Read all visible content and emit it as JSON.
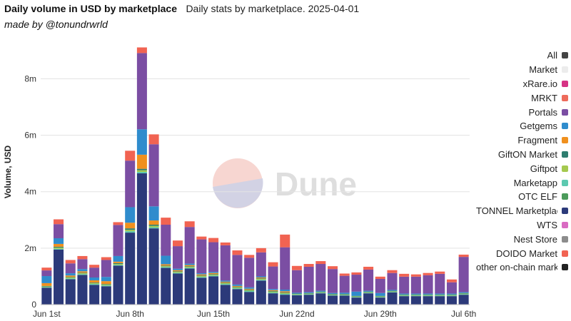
{
  "header": {
    "title": "Daily volume in USD by marketplace",
    "subtitle": "Daily stats by marketplace. 2025-04-01",
    "credit": "made by @tonundrwrld"
  },
  "watermark": "Dune",
  "chart_data": {
    "type": "bar",
    "stacked": true,
    "ylabel": "Volume, USD",
    "xlabel": "",
    "ylim": [
      0,
      9400000
    ],
    "yticks": [
      0,
      2000000,
      4000000,
      6000000,
      8000000
    ],
    "ytick_labels": [
      "0",
      "2m",
      "4m",
      "6m",
      "8m"
    ],
    "x_tick_labels": [
      {
        "index": 0,
        "label": "Jun 1st"
      },
      {
        "index": 7,
        "label": "Jun 8th"
      },
      {
        "index": 14,
        "label": "Jun 15th"
      },
      {
        "index": 21,
        "label": "Jun 22nd"
      },
      {
        "index": 28,
        "label": "Jun 29th"
      },
      {
        "index": 35,
        "label": "Jul 6th"
      }
    ],
    "grid": true,
    "legend_position": "right",
    "categories": [
      "Jun 1",
      "Jun 2",
      "Jun 3",
      "Jun 4",
      "Jun 5",
      "Jun 6",
      "Jun 7",
      "Jun 8",
      "Jun 9",
      "Jun 10",
      "Jun 11",
      "Jun 12",
      "Jun 13",
      "Jun 14",
      "Jun 15",
      "Jun 16",
      "Jun 17",
      "Jun 18",
      "Jun 19",
      "Jun 20",
      "Jun 21",
      "Jun 22",
      "Jun 23",
      "Jun 24",
      "Jun 25",
      "Jun 26",
      "Jun 27",
      "Jun 28",
      "Jun 29",
      "Jun 30",
      "Jul 1",
      "Jul 2",
      "Jul 3",
      "Jul 4",
      "Jul 5",
      "Jul 6"
    ],
    "series": [
      {
        "name": "All",
        "color": "#444444",
        "values": [
          0,
          0,
          0,
          0,
          0,
          0,
          0,
          0,
          0,
          0,
          0,
          0,
          0,
          0,
          0,
          0,
          0,
          0,
          0,
          0,
          0,
          0,
          0,
          0,
          0,
          0,
          0,
          0,
          0,
          0,
          0,
          0,
          0,
          0,
          0,
          0
        ]
      },
      {
        "name": "Market",
        "color": "#ececec",
        "values": [
          0,
          0,
          0,
          0,
          0,
          0,
          0,
          0,
          0,
          0,
          0,
          0,
          0,
          0,
          0,
          0,
          0,
          0,
          0,
          0,
          0,
          0,
          0,
          0,
          0,
          0,
          0,
          0,
          0,
          0,
          0,
          0,
          0,
          0,
          0,
          0
        ]
      },
      {
        "name": "xRare.io",
        "color": "#d63384",
        "values": [
          0,
          0,
          0,
          0,
          0,
          0,
          0,
          0,
          0,
          0,
          0,
          0,
          0,
          0,
          0,
          0,
          0,
          0,
          0,
          0,
          0,
          0,
          0,
          0,
          0,
          0,
          0,
          0,
          0,
          0,
          0,
          0,
          0,
          0,
          0,
          0
        ]
      },
      {
        "name": "DOIDO Market",
        "color": "#f16352",
        "values": [
          100000,
          170000,
          120000,
          110000,
          100000,
          100000,
          100000,
          350000,
          200000,
          350000,
          250000,
          200000,
          200000,
          100000,
          150000,
          100000,
          160000,
          100000,
          150000,
          150000,
          450000,
          150000,
          100000,
          100000,
          100000,
          80000,
          80000,
          100000,
          80000,
          100000,
          100000,
          80000,
          80000,
          80000,
          100000,
          80000
        ]
      },
      {
        "name": "Portals",
        "color": "#7b4ea3",
        "values": [
          200000,
          500000,
          350000,
          350000,
          350000,
          600000,
          1100000,
          1650000,
          2700000,
          2200000,
          1100000,
          800000,
          1300000,
          1200000,
          1050000,
          1250000,
          1050000,
          1050000,
          850000,
          800000,
          1500000,
          800000,
          900000,
          950000,
          850000,
          600000,
          600000,
          750000,
          500000,
          600000,
          600000,
          600000,
          650000,
          700000,
          400000,
          1250000
        ]
      },
      {
        "name": "Getgems",
        "color": "#2f8ccd",
        "values": [
          250000,
          200000,
          80000,
          80000,
          100000,
          150000,
          200000,
          550000,
          900000,
          500000,
          300000,
          50000,
          50000,
          40000,
          40000,
          40000,
          50000,
          50000,
          40000,
          40000,
          60000,
          30000,
          30000,
          30000,
          30000,
          40000,
          150000,
          30000,
          100000,
          30000,
          30000,
          30000,
          30000,
          30000,
          30000,
          30000
        ]
      },
      {
        "name": "Fragment",
        "color": "#f0901e",
        "values": [
          100000,
          100000,
          50000,
          50000,
          80000,
          100000,
          50000,
          200000,
          500000,
          150000,
          50000,
          40000,
          40000,
          40000,
          40000,
          30000,
          30000,
          30000,
          30000,
          30000,
          40000,
          0,
          0,
          0,
          0,
          0,
          0,
          0,
          0,
          0,
          0,
          0,
          0,
          0,
          0,
          0
        ]
      },
      {
        "name": "GiftON Market",
        "color": "#2e7d6f",
        "values": [
          20000,
          30000,
          20000,
          20000,
          20000,
          20000,
          30000,
          50000,
          50000,
          40000,
          20000,
          20000,
          20000,
          20000,
          20000,
          20000,
          20000,
          20000,
          20000,
          20000,
          20000,
          20000,
          20000,
          20000,
          20000,
          20000,
          20000,
          20000,
          20000,
          20000,
          20000,
          20000,
          20000,
          20000,
          20000,
          20000
        ]
      },
      {
        "name": "Giftpot",
        "color": "#a5c94f",
        "values": [
          20000,
          40000,
          30000,
          30000,
          30000,
          30000,
          30000,
          50000,
          60000,
          50000,
          30000,
          30000,
          30000,
          30000,
          30000,
          30000,
          30000,
          30000,
          30000,
          30000,
          30000,
          20000,
          20000,
          20000,
          20000,
          20000,
          20000,
          20000,
          20000,
          20000,
          20000,
          20000,
          20000,
          20000,
          20000,
          20000
        ]
      },
      {
        "name": "Marketapp",
        "color": "#5cc9b0",
        "values": [
          20000,
          30000,
          30000,
          30000,
          30000,
          30000,
          30000,
          50000,
          50000,
          40000,
          30000,
          30000,
          30000,
          30000,
          30000,
          30000,
          30000,
          30000,
          30000,
          30000,
          30000,
          20000,
          20000,
          20000,
          20000,
          20000,
          20000,
          20000,
          20000,
          20000,
          20000,
          20000,
          20000,
          20000,
          20000,
          20000
        ]
      },
      {
        "name": "OTC ELF",
        "color": "#4c9b5b",
        "values": [
          0,
          0,
          0,
          0,
          0,
          0,
          0,
          0,
          0,
          0,
          0,
          0,
          0,
          0,
          0,
          0,
          0,
          0,
          0,
          0,
          0,
          0,
          0,
          0,
          0,
          0,
          0,
          0,
          0,
          0,
          0,
          0,
          0,
          0,
          0,
          0
        ]
      },
      {
        "name": "TONNEL Marketplace",
        "color": "#2c3a7a",
        "values": [
          600000,
          1950000,
          900000,
          1050000,
          700000,
          650000,
          1380000,
          2550000,
          4650000,
          2700000,
          1300000,
          1100000,
          1280000,
          950000,
          1000000,
          700000,
          550000,
          450000,
          850000,
          400000,
          350000,
          330000,
          350000,
          400000,
          320000,
          320000,
          250000,
          400000,
          250000,
          430000,
          300000,
          300000,
          300000,
          300000,
          300000,
          350000
        ]
      },
      {
        "name": "WTS",
        "color": "#d96bc2",
        "values": [
          0,
          0,
          0,
          0,
          0,
          0,
          0,
          0,
          0,
          0,
          0,
          0,
          0,
          0,
          0,
          0,
          0,
          0,
          0,
          0,
          0,
          0,
          0,
          0,
          0,
          0,
          0,
          0,
          0,
          0,
          0,
          0,
          0,
          0,
          0,
          0
        ]
      },
      {
        "name": "Nest Store",
        "color": "#8c8c8c",
        "values": [
          0,
          0,
          0,
          0,
          0,
          0,
          0,
          0,
          0,
          0,
          0,
          0,
          0,
          0,
          0,
          0,
          0,
          0,
          0,
          0,
          0,
          0,
          0,
          0,
          0,
          0,
          0,
          0,
          0,
          0,
          0,
          0,
          0,
          0,
          0,
          0
        ]
      },
      {
        "name": "other on-chain markets",
        "color": "#222222",
        "values": [
          0,
          0,
          0,
          0,
          0,
          0,
          0,
          0,
          0,
          0,
          0,
          0,
          0,
          0,
          0,
          0,
          0,
          0,
          0,
          0,
          0,
          0,
          0,
          0,
          0,
          0,
          0,
          0,
          0,
          0,
          0,
          0,
          0,
          0,
          0,
          0
        ]
      }
    ],
    "stack_order": [
      "TONNEL Marketplace",
      "OTC ELF",
      "Marketapp",
      "Giftpot",
      "GiftON Market",
      "Fragment",
      "Getgems",
      "Portals",
      "DOIDO Market"
    ],
    "legend_order": [
      "All",
      "Market",
      "xRare.io",
      "MRKT",
      "Portals",
      "Getgems",
      "Fragment",
      "GiftON Market",
      "Giftpot",
      "Marketapp",
      "OTC ELF",
      "TONNEL Marketplace",
      "WTS",
      "Nest Store",
      "DOIDO Market",
      "other on-chain markets"
    ],
    "legend_extra": [
      {
        "name": "MRKT",
        "color": "#ee6b5b"
      }
    ]
  }
}
